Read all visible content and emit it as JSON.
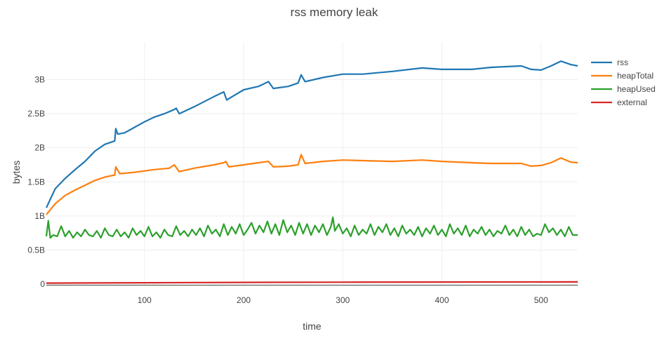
{
  "chart_data": {
    "type": "line",
    "title": "rss memory leak",
    "xlabel": "time",
    "ylabel": "bytes",
    "xlim": [
      1,
      537
    ],
    "ylim": [
      -0.02,
      3.55
    ],
    "x_ticks": [
      100,
      200,
      300,
      400,
      500
    ],
    "x_tick_labels": [
      "100",
      "200",
      "300",
      "400",
      "500"
    ],
    "y_ticks": [
      0,
      0.5,
      1,
      1.5,
      2,
      2.5,
      3
    ],
    "y_tick_labels": [
      "0",
      "0.5B",
      "1B",
      "1.5B",
      "2B",
      "2.5B",
      "3B"
    ],
    "grid": true,
    "legend_position": "top-right",
    "series": [
      {
        "name": "rss",
        "color": "#1f77b4",
        "x": [
          1,
          10,
          20,
          30,
          40,
          50,
          60,
          70,
          71,
          73,
          80,
          90,
          100,
          110,
          120,
          130,
          132,
          135,
          150,
          170,
          180,
          183,
          185,
          200,
          215,
          225,
          230,
          245,
          255,
          258,
          262,
          280,
          300,
          320,
          350,
          380,
          400,
          430,
          450,
          480,
          490,
          500,
          510,
          520,
          530,
          537
        ],
        "values": [
          1.12,
          1.4,
          1.55,
          1.68,
          1.8,
          1.95,
          2.05,
          2.1,
          2.28,
          2.2,
          2.22,
          2.3,
          2.38,
          2.45,
          2.5,
          2.56,
          2.58,
          2.5,
          2.6,
          2.75,
          2.82,
          2.7,
          2.72,
          2.85,
          2.9,
          2.97,
          2.87,
          2.9,
          2.95,
          3.07,
          2.97,
          3.03,
          3.08,
          3.08,
          3.12,
          3.17,
          3.15,
          3.15,
          3.18,
          3.2,
          3.15,
          3.14,
          3.2,
          3.27,
          3.22,
          3.2
        ]
      },
      {
        "name": "heapTotal",
        "color": "#ff7f0e",
        "x": [
          1,
          10,
          20,
          30,
          40,
          50,
          60,
          70,
          71,
          75,
          90,
          110,
          125,
          130,
          135,
          150,
          170,
          180,
          182,
          185,
          200,
          215,
          225,
          230,
          245,
          255,
          258,
          262,
          280,
          300,
          350,
          380,
          400,
          430,
          450,
          480,
          490,
          500,
          510,
          520,
          530,
          537
        ],
        "values": [
          1.02,
          1.18,
          1.3,
          1.38,
          1.45,
          1.52,
          1.57,
          1.6,
          1.72,
          1.62,
          1.64,
          1.68,
          1.7,
          1.75,
          1.65,
          1.7,
          1.75,
          1.78,
          1.8,
          1.72,
          1.75,
          1.78,
          1.8,
          1.72,
          1.73,
          1.75,
          1.9,
          1.77,
          1.8,
          1.82,
          1.8,
          1.82,
          1.8,
          1.78,
          1.77,
          1.77,
          1.73,
          1.74,
          1.78,
          1.85,
          1.79,
          1.78
        ]
      },
      {
        "name": "heapUsed",
        "color": "#2ca02c",
        "x": [
          1,
          3,
          5,
          8,
          12,
          16,
          20,
          24,
          28,
          32,
          36,
          40,
          44,
          48,
          52,
          56,
          60,
          64,
          68,
          72,
          76,
          80,
          84,
          88,
          92,
          96,
          100,
          104,
          108,
          112,
          116,
          120,
          124,
          128,
          132,
          136,
          140,
          144,
          148,
          152,
          156,
          160,
          164,
          168,
          172,
          176,
          180,
          184,
          188,
          192,
          196,
          200,
          204,
          208,
          212,
          216,
          220,
          224,
          228,
          232,
          236,
          240,
          244,
          248,
          252,
          256,
          260,
          264,
          268,
          272,
          276,
          280,
          284,
          288,
          290,
          292,
          296,
          300,
          304,
          308,
          312,
          316,
          320,
          324,
          328,
          332,
          336,
          340,
          344,
          348,
          352,
          356,
          360,
          364,
          368,
          372,
          376,
          380,
          384,
          388,
          392,
          396,
          400,
          404,
          408,
          412,
          416,
          420,
          424,
          428,
          432,
          436,
          440,
          444,
          448,
          452,
          456,
          460,
          464,
          468,
          472,
          476,
          480,
          484,
          488,
          492,
          496,
          500,
          504,
          508,
          512,
          516,
          520,
          524,
          528,
          532,
          537
        ],
        "values": [
          0.7,
          0.93,
          0.68,
          0.72,
          0.7,
          0.85,
          0.7,
          0.78,
          0.68,
          0.76,
          0.7,
          0.8,
          0.72,
          0.7,
          0.78,
          0.68,
          0.82,
          0.72,
          0.7,
          0.8,
          0.7,
          0.76,
          0.68,
          0.82,
          0.72,
          0.78,
          0.7,
          0.84,
          0.7,
          0.76,
          0.68,
          0.8,
          0.72,
          0.7,
          0.85,
          0.72,
          0.78,
          0.7,
          0.8,
          0.72,
          0.82,
          0.7,
          0.86,
          0.74,
          0.8,
          0.7,
          0.88,
          0.72,
          0.84,
          0.74,
          0.88,
          0.72,
          0.8,
          0.9,
          0.74,
          0.86,
          0.76,
          0.92,
          0.74,
          0.88,
          0.72,
          0.94,
          0.76,
          0.86,
          0.72,
          0.9,
          0.74,
          0.88,
          0.72,
          0.86,
          0.76,
          0.88,
          0.72,
          0.84,
          0.98,
          0.78,
          0.88,
          0.74,
          0.82,
          0.7,
          0.86,
          0.72,
          0.8,
          0.74,
          0.88,
          0.72,
          0.84,
          0.76,
          0.88,
          0.72,
          0.82,
          0.7,
          0.86,
          0.74,
          0.8,
          0.72,
          0.84,
          0.7,
          0.82,
          0.74,
          0.86,
          0.72,
          0.8,
          0.7,
          0.88,
          0.74,
          0.82,
          0.72,
          0.86,
          0.7,
          0.8,
          0.74,
          0.84,
          0.72,
          0.8,
          0.7,
          0.78,
          0.74,
          0.86,
          0.72,
          0.8,
          0.7,
          0.84,
          0.72,
          0.8,
          0.7,
          0.74,
          0.72,
          0.88,
          0.76,
          0.82,
          0.72,
          0.8,
          0.7,
          0.84,
          0.72,
          0.72
        ]
      },
      {
        "name": "external",
        "color": "#d62728",
        "x": [
          1,
          100,
          200,
          300,
          400,
          537
        ],
        "values": [
          0.015,
          0.02,
          0.025,
          0.028,
          0.03,
          0.032
        ]
      }
    ]
  }
}
